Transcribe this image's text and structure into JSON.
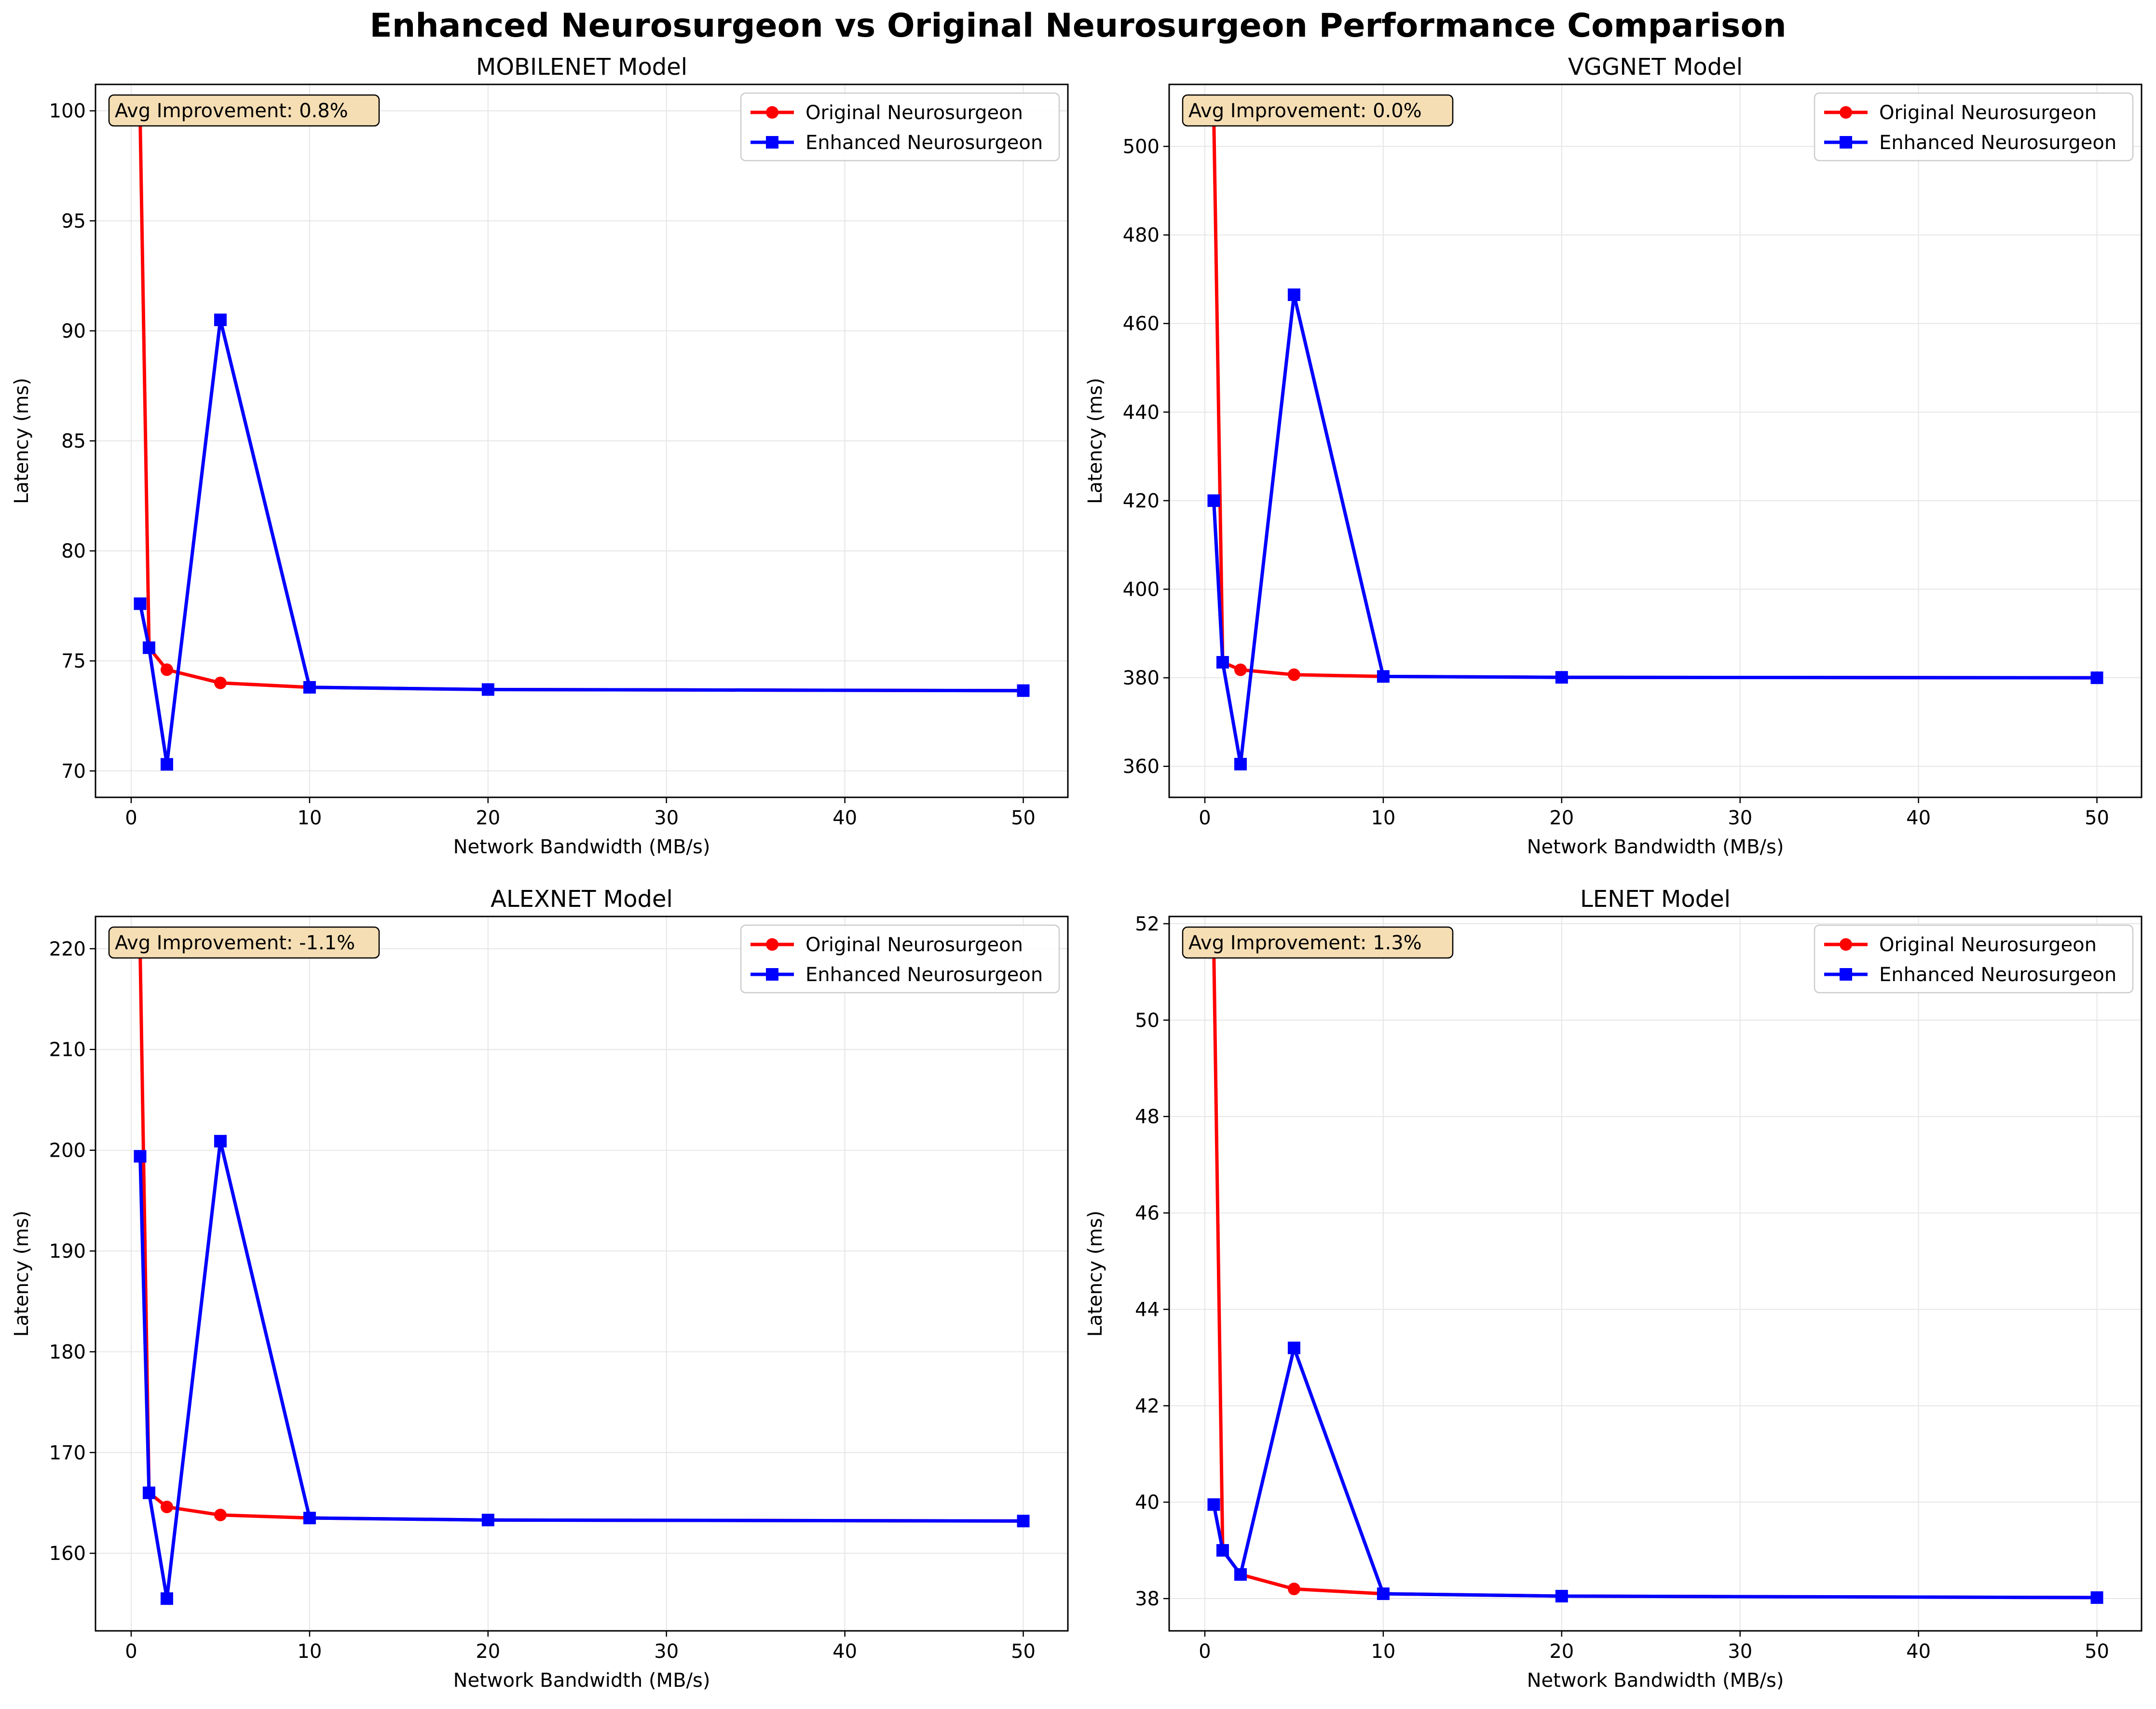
{
  "figure": {
    "title": "Enhanced Neurosurgeon vs Original Neurosurgeon Performance Comparison",
    "colors": {
      "original": "#ff0000",
      "enhanced": "#0000ff",
      "note_bg": "#f5deb3",
      "grid": "#e6e6e6"
    },
    "markers": {
      "original": "circle",
      "enhanced": "square"
    }
  },
  "chart_data": [
    {
      "type": "line",
      "title": "MOBILENET Model",
      "xlabel": "Network Bandwidth (MB/s)",
      "ylabel": "Latency (ms)",
      "xlim": [
        -2,
        52.5
      ],
      "ylim": [
        68.8,
        101.2
      ],
      "xticks": [
        0,
        10,
        20,
        30,
        40,
        50
      ],
      "yticks": [
        70,
        75,
        80,
        85,
        90,
        95,
        100
      ],
      "grid": true,
      "legend_position": "top-right",
      "annotation": "Avg Improvement: 0.8%",
      "series": [
        {
          "name": "Original Neurosurgeon",
          "x": [
            0.5,
            1,
            2,
            5,
            10,
            20,
            50
          ],
          "y": [
            99.7,
            75.6,
            74.6,
            74.0,
            73.8,
            73.7,
            73.65
          ]
        },
        {
          "name": "Enhanced Neurosurgeon",
          "x": [
            0.5,
            1,
            2,
            5,
            10,
            20,
            50
          ],
          "y": [
            77.6,
            75.6,
            70.3,
            90.5,
            73.8,
            73.7,
            73.65
          ]
        }
      ]
    },
    {
      "type": "line",
      "title": "VGGNET Model",
      "xlabel": "Network Bandwidth (MB/s)",
      "ylabel": "Latency (ms)",
      "xlim": [
        -2,
        52.5
      ],
      "ylim": [
        353,
        514
      ],
      "xticks": [
        0,
        10,
        20,
        30,
        40,
        50
      ],
      "yticks": [
        360,
        380,
        400,
        420,
        440,
        460,
        480,
        500
      ],
      "grid": true,
      "legend_position": "top-right",
      "annotation": "Avg Improvement: 0.0%",
      "series": [
        {
          "name": "Original Neurosurgeon",
          "x": [
            0.5,
            1,
            2,
            5,
            10,
            20,
            50
          ],
          "y": [
            507.0,
            383.5,
            381.8,
            380.7,
            380.3,
            380.1,
            380.0
          ]
        },
        {
          "name": "Enhanced Neurosurgeon",
          "x": [
            0.5,
            1,
            2,
            5,
            10,
            20,
            50
          ],
          "y": [
            420.0,
            383.5,
            360.5,
            466.5,
            380.3,
            380.1,
            380.0
          ]
        }
      ]
    },
    {
      "type": "line",
      "title": "ALEXNET Model",
      "xlabel": "Network Bandwidth (MB/s)",
      "ylabel": "Latency (ms)",
      "xlim": [
        -2,
        52.5
      ],
      "ylim": [
        152.3,
        223.2
      ],
      "xticks": [
        0,
        10,
        20,
        30,
        40,
        50
      ],
      "yticks": [
        160,
        170,
        180,
        190,
        200,
        210,
        220
      ],
      "grid": true,
      "legend_position": "top-right",
      "annotation": "Avg Improvement: -1.1%",
      "series": [
        {
          "name": "Original Neurosurgeon",
          "x": [
            0.5,
            1,
            2,
            5,
            10,
            20,
            50
          ],
          "y": [
            219.9,
            166.0,
            164.6,
            163.8,
            163.5,
            163.3,
            163.2
          ]
        },
        {
          "name": "Enhanced Neurosurgeon",
          "x": [
            0.5,
            1,
            2,
            5,
            10,
            20,
            50
          ],
          "y": [
            199.4,
            166.0,
            155.5,
            200.9,
            163.5,
            163.3,
            163.2
          ]
        }
      ]
    },
    {
      "type": "line",
      "title": "LENET Model",
      "xlabel": "Network Bandwidth (MB/s)",
      "ylabel": "Latency (ms)",
      "xlim": [
        -2,
        52.5
      ],
      "ylim": [
        37.33,
        52.15
      ],
      "xticks": [
        0,
        10,
        20,
        30,
        40,
        50
      ],
      "yticks": [
        38,
        40,
        42,
        44,
        46,
        48,
        50,
        52
      ],
      "grid": true,
      "legend_position": "top-right",
      "annotation": "Avg Improvement: 1.3%",
      "series": [
        {
          "name": "Original Neurosurgeon",
          "x": [
            0.5,
            1,
            2,
            5,
            10,
            20,
            50
          ],
          "y": [
            51.5,
            39.0,
            38.5,
            38.2,
            38.1,
            38.05,
            38.02
          ]
        },
        {
          "name": "Enhanced Neurosurgeon",
          "x": [
            0.5,
            1,
            2,
            5,
            10,
            20,
            50
          ],
          "y": [
            39.95,
            39.0,
            38.5,
            43.2,
            38.1,
            38.05,
            38.02
          ]
        }
      ]
    }
  ]
}
